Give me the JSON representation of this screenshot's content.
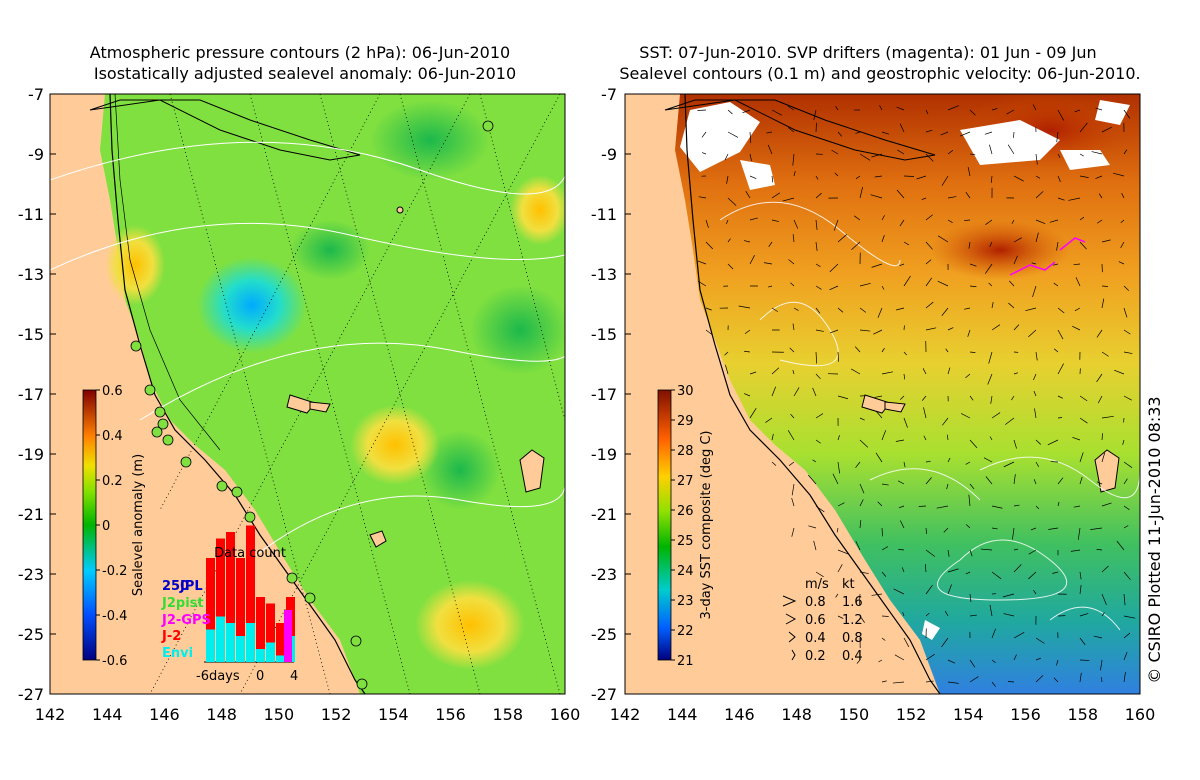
{
  "left_panel": {
    "title_line1": "Atmospheric pressure contours (2 hPa): 06-Jun-2010",
    "title_line2": "Isostatically adjusted sealevel anomaly: 06-Jun-2010",
    "colorbar_label": "Sealevel anomaly (m)",
    "colorbar_ticks": [
      "0.6",
      "0.4",
      "0.2",
      "0",
      "-0.2",
      "-0.4",
      "-0.6"
    ],
    "data_count": {
      "title": "Data count",
      "legend": [
        {
          "label": "250",
          "color": "#0000cc"
        },
        {
          "label": "JPL",
          "color": "#0000cc"
        },
        {
          "label": "J2pist",
          "color": "#33dd33"
        },
        {
          "label": "J2-GPS",
          "color": "#ff00ff"
        },
        {
          "label": "J-2",
          "color": "#ff0000"
        },
        {
          "label": "Envi",
          "color": "#00eeee"
        }
      ],
      "axis_labels": [
        "-6days",
        "0",
        "4"
      ],
      "bars": [
        {
          "envi": 0.25,
          "j2": 0.55
        },
        {
          "envi": 0.35,
          "j2": 0.6
        },
        {
          "envi": 0.3,
          "j2": 0.7
        },
        {
          "envi": 0.2,
          "j2": 0.6
        },
        {
          "envi": 0.3,
          "j2": 0.75
        },
        {
          "envi": 0.1,
          "j2": 0.4
        },
        {
          "envi": 0.15,
          "j2": 0.3
        },
        {
          "envi": 0.05,
          "j2": 0.25
        },
        {
          "envi": 0.2,
          "j2": 0.3
        }
      ]
    }
  },
  "right_panel": {
    "title_line1": "SST: 07-Jun-2010. SVP drifters (magenta): 01 Jun - 09 Jun",
    "title_line2": "Sealevel contours (0.1 m) and geostrophic velocity: 06-Jun-2010.",
    "colorbar_label": "3-day SST composite (deg C)",
    "colorbar_ticks": [
      "30",
      "29",
      "28",
      "27",
      "26",
      "25",
      "24",
      "23",
      "22",
      "21"
    ],
    "velocity_legend": {
      "header_ms": "m/s",
      "header_kt": "kt",
      "rows": [
        {
          "ms": "0.8",
          "kt": "1.6"
        },
        {
          "ms": "0.6",
          "kt": "1.2"
        },
        {
          "ms": "0.4",
          "kt": "0.8"
        },
        {
          "ms": "0.2",
          "kt": "0.4"
        }
      ]
    }
  },
  "latitude_labels": [
    "-7",
    "-9",
    "-11",
    "-13",
    "-15",
    "-17",
    "-19",
    "-21",
    "-23",
    "-25",
    "-27"
  ],
  "longitude_labels": [
    "142",
    "144",
    "146",
    "148",
    "150",
    "152",
    "154",
    "156",
    "158",
    "160"
  ],
  "credit": "© CSIRO Plotted 11-Jun-2010 08:33"
}
